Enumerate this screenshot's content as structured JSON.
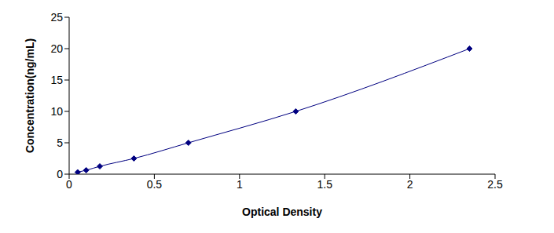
{
  "chart_data": {
    "type": "line",
    "x_label": "Optical Density",
    "y_label": "Concentration(ng/mL)",
    "x": [
      0.05,
      0.1,
      0.18,
      0.38,
      0.7,
      1.33,
      2.35
    ],
    "values": [
      0.31,
      0.63,
      1.25,
      2.5,
      5,
      10,
      20
    ],
    "color": "#000080",
    "marker": "diamond",
    "line_style": "solid",
    "xlim": [
      0,
      2.5
    ],
    "xticks": [
      0,
      0.5,
      1,
      1.5,
      2,
      2.5
    ],
    "ylim": [
      0,
      25
    ],
    "yticks": [
      0,
      5,
      10,
      15,
      20,
      25
    ],
    "grid": false
  }
}
